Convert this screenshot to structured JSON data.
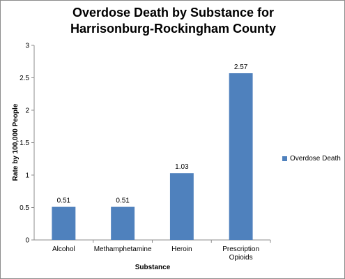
{
  "chart_data": {
    "type": "bar",
    "title_lines": [
      "Overdose Death by Substance for",
      "Harrisonburg-Rockingham County"
    ],
    "categories": [
      [
        "Alcohol"
      ],
      [
        "Methamphetamine"
      ],
      [
        "Heroin"
      ],
      [
        "Prescription",
        "Opioids"
      ]
    ],
    "series": [
      {
        "name": "Overdose Death",
        "values": [
          0.51,
          0.51,
          1.03,
          2.57
        ],
        "labels": [
          "0.51",
          "0.51",
          "1.03",
          "2.57"
        ],
        "color": "#4f81bd"
      }
    ],
    "xlabel": "Substance",
    "ylabel": "Rate by 100,000 People",
    "ylim": [
      0,
      3
    ],
    "yticks": [
      "0",
      "0.5",
      "1",
      "1.5",
      "2",
      "2.5",
      "3"
    ],
    "grid": false,
    "legend_position": "right"
  }
}
